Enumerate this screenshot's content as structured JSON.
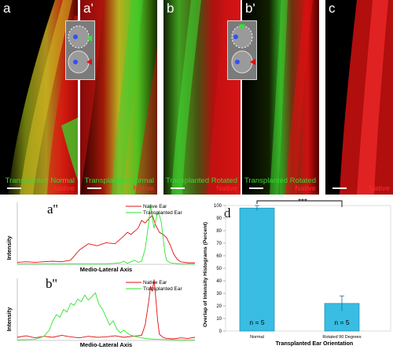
{
  "panels": [
    {
      "letter": "a",
      "caption_green": "Transplanted Normal",
      "caption_red": "Native"
    },
    {
      "letter": "a'",
      "caption_green": "Transplanted Normal",
      "caption_red": "Native"
    },
    {
      "letter": "b",
      "caption_green": "Transplanted Rotated",
      "caption_red": "Native"
    },
    {
      "letter": "b'",
      "caption_green": "Transplanted Rotated",
      "caption_red": "Native"
    },
    {
      "letter": "c",
      "caption_green": "",
      "caption_red": "Native"
    }
  ],
  "colors": {
    "green": "#2ee62e",
    "red": "#e01010",
    "bar": "#39bde3",
    "bar_edge": "#1a8db3"
  },
  "chart_data": [
    {
      "type": "line",
      "label": "a''",
      "xlabel": "Medio-Lateral Axis",
      "ylabel": "Intensity",
      "series": [
        {
          "name": "Native Ear",
          "color": "#e01010",
          "x": [
            0,
            5,
            10,
            15,
            20,
            25,
            30,
            35,
            40,
            45,
            50,
            55,
            60,
            62,
            64,
            66,
            68,
            70,
            72,
            74,
            76,
            78,
            80,
            82,
            84,
            86,
            88,
            90,
            92,
            94,
            96,
            100
          ],
          "values": [
            4,
            5,
            4,
            5,
            6,
            5,
            8,
            28,
            40,
            36,
            42,
            40,
            55,
            62,
            58,
            64,
            70,
            85,
            80,
            88,
            95,
            75,
            62,
            58,
            52,
            38,
            20,
            10,
            5,
            4,
            3,
            3
          ]
        },
        {
          "name": "Transplanted Ear",
          "color": "#2ee62e",
          "x": [
            0,
            10,
            20,
            30,
            40,
            50,
            55,
            58,
            60,
            62,
            64,
            66,
            68,
            70,
            72,
            74,
            75,
            76,
            77,
            78,
            79,
            80,
            81,
            82,
            83,
            84,
            86,
            88,
            92,
            100
          ],
          "values": [
            1,
            1,
            1,
            1,
            1,
            1,
            2,
            3,
            6,
            2,
            5,
            8,
            4,
            6,
            30,
            80,
            115,
            90,
            70,
            85,
            100,
            95,
            82,
            55,
            25,
            8,
            3,
            2,
            1,
            1
          ]
        }
      ]
    },
    {
      "type": "line",
      "label": "b''",
      "xlabel": "Medio-Lateral Axis",
      "ylabel": "Intensity",
      "series": [
        {
          "name": "Native Ear",
          "color": "#e01010",
          "x": [
            0,
            5,
            10,
            15,
            20,
            25,
            30,
            35,
            40,
            45,
            50,
            55,
            60,
            65,
            70,
            72,
            74,
            75,
            76,
            77,
            78,
            79,
            80,
            82,
            84,
            88,
            92,
            96,
            100
          ],
          "values": [
            6,
            9,
            5,
            8,
            6,
            10,
            7,
            5,
            8,
            6,
            7,
            9,
            6,
            8,
            10,
            30,
            75,
            105,
            95,
            118,
            80,
            40,
            12,
            6,
            4,
            3,
            5,
            4,
            6
          ]
        },
        {
          "name": "Transplanted Ear",
          "color": "#2ee62e",
          "x": [
            0,
            10,
            15,
            18,
            20,
            22,
            24,
            26,
            28,
            30,
            32,
            34,
            36,
            38,
            40,
            42,
            44,
            46,
            48,
            50,
            52,
            54,
            56,
            58,
            60,
            62,
            64,
            66,
            70,
            74,
            80,
            90,
            100
          ],
          "values": [
            1,
            2,
            8,
            20,
            38,
            50,
            45,
            60,
            55,
            72,
            68,
            80,
            75,
            88,
            78,
            85,
            92,
            70,
            60,
            45,
            30,
            38,
            22,
            15,
            20,
            14,
            10,
            8,
            5,
            3,
            2,
            1,
            1
          ]
        }
      ]
    },
    {
      "type": "bar",
      "label": "d",
      "title": "***",
      "xlabel": "Transplanted Ear Orientation",
      "ylabel": "Overlap of Intensity Histograms (Percent)",
      "categories": [
        "Normal",
        "Rotated 90 Degrees"
      ],
      "values": [
        98,
        22
      ],
      "errors": [
        2,
        6
      ],
      "annotations": [
        "n = 5",
        "n = 5"
      ],
      "ylim": [
        0,
        100
      ],
      "yticks": [
        0,
        10,
        20,
        30,
        40,
        50,
        60,
        70,
        80,
        90,
        100
      ]
    }
  ]
}
